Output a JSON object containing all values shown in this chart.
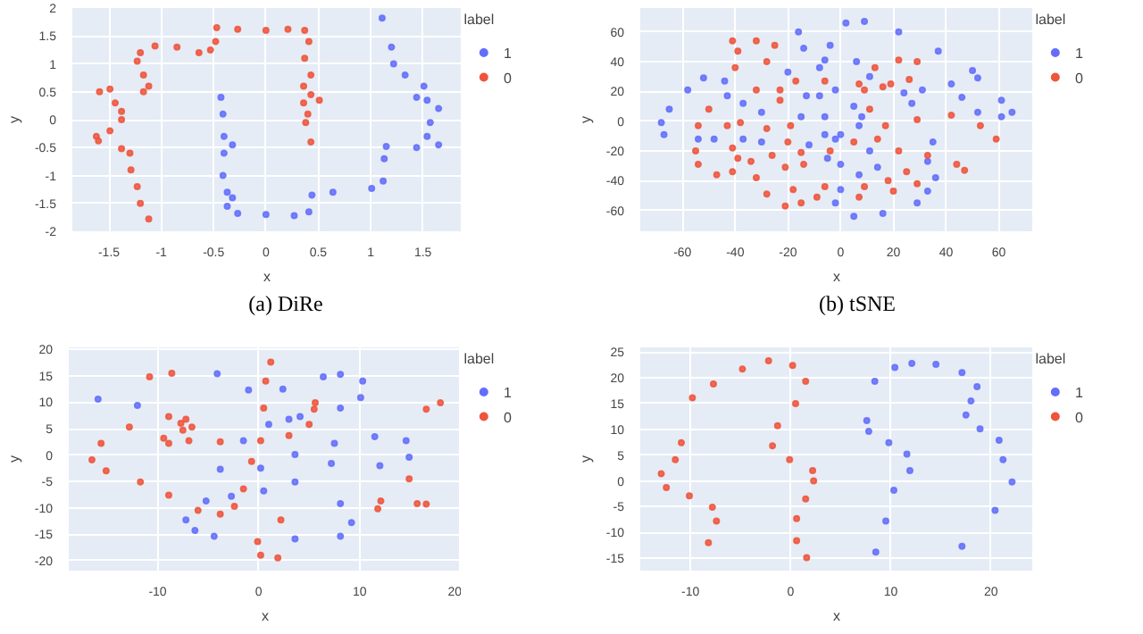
{
  "chart_data": [
    {
      "type": "scatter",
      "xlabel": "x",
      "ylabel": "y",
      "legend_title": "label",
      "legend": "right",
      "grid": true,
      "marker": "circle",
      "annotations": [
        "(a) DiRe"
      ],
      "xlim": [
        -1.85,
        1.87
      ],
      "ylim": [
        -2,
        2
      ],
      "xticks": [
        -1.5,
        -1,
        -0.5,
        0,
        0.5,
        1,
        1.5
      ],
      "yticks": [
        -2,
        -1.5,
        -1,
        -0.5,
        0,
        0.5,
        1,
        1.5,
        2
      ],
      "series": [
        {
          "name": "1",
          "color": "#636efa",
          "x": [
            -0.43,
            -0.41,
            -0.4,
            -0.32,
            -0.4,
            -0.41,
            -0.37,
            -0.32,
            -0.37,
            -0.27,
            0,
            0.27,
            0.41,
            0.44,
            0.64,
            1.01,
            1.12,
            1.13,
            1.15,
            1.44,
            1.65,
            1.54,
            1.57,
            1.65,
            1.54,
            1.44,
            1.51,
            1.33,
            1.22,
            1.2,
            1.11
          ],
          "values": [
            0.4,
            0.1,
            -0.3,
            -0.45,
            -0.6,
            -1.0,
            -1.3,
            -1.4,
            -1.55,
            -1.68,
            -1.7,
            -1.72,
            -1.65,
            -1.35,
            -1.3,
            -1.23,
            -1.1,
            -0.7,
            -0.48,
            -0.5,
            -0.45,
            -0.3,
            -0.05,
            0.2,
            0.35,
            0.4,
            0.6,
            0.8,
            1.0,
            1.3,
            1.82
          ]
        },
        {
          "name": "0",
          "color": "#ef553b",
          "x": [
            -1.12,
            -1.2,
            -1.23,
            -1.29,
            -1.3,
            -1.38,
            -1.6,
            -1.62,
            -1.49,
            -1.38,
            -1.38,
            -1.44,
            -1.59,
            -1.49,
            -1.17,
            -1.12,
            -1.17,
            -1.23,
            -1.2,
            -1.06,
            -0.85,
            -0.64,
            -0.53,
            -0.48,
            -0.47,
            -0.27,
            0.0,
            0.21,
            0.37,
            0.41,
            0.37,
            0.43,
            0.36,
            0.43,
            0.51,
            0.36,
            0.4,
            0.38,
            0.43
          ],
          "values": [
            -1.78,
            -1.5,
            -1.2,
            -0.9,
            -0.6,
            -0.52,
            -0.38,
            -0.3,
            -0.2,
            0.0,
            0.15,
            0.3,
            0.5,
            0.55,
            0.5,
            0.6,
            0.8,
            1.05,
            1.2,
            1.32,
            1.3,
            1.2,
            1.25,
            1.4,
            1.65,
            1.62,
            1.6,
            1.62,
            1.6,
            1.4,
            1.1,
            0.8,
            0.6,
            0.45,
            0.35,
            0.3,
            0.1,
            -0.05,
            -0.4
          ]
        }
      ]
    },
    {
      "type": "scatter",
      "xlabel": "x",
      "ylabel": "y",
      "legend_title": "label",
      "legend": "right",
      "grid": true,
      "marker": "circle",
      "annotations": [
        "(b) tSNE"
      ],
      "xlim": [
        -76,
        73
      ],
      "ylim": [
        -74,
        76
      ],
      "xticks": [
        -60,
        -40,
        -20,
        0,
        20,
        40,
        60
      ],
      "yticks": [
        -60,
        -40,
        -20,
        0,
        20,
        40,
        60
      ],
      "series": [
        {
          "name": "1",
          "color": "#636efa",
          "x": [
            -68,
            -65,
            -58,
            -52,
            -44,
            -43,
            -37,
            -30,
            -67,
            -54,
            -48,
            -37,
            -30,
            -16,
            -4,
            6,
            -14,
            -6,
            -20,
            -8,
            11,
            2,
            9,
            22,
            37,
            50,
            52,
            42,
            31,
            24,
            -13,
            -15,
            -12,
            -5,
            0,
            -8,
            -6,
            0,
            7,
            -2,
            5,
            8,
            27,
            46,
            61,
            65,
            61,
            52,
            -6,
            -2,
            11,
            14,
            7,
            0,
            -2,
            5,
            16,
            29,
            33,
            36,
            33,
            35
          ],
          "values": [
            -1,
            8,
            21,
            29,
            27,
            17,
            12,
            6,
            -9,
            -12,
            -12,
            -12,
            -14,
            60,
            51,
            40,
            49,
            41,
            33,
            36,
            30,
            66,
            67,
            60,
            47,
            34,
            29,
            25,
            21,
            19,
            17,
            3,
            -16,
            -25,
            -29,
            17,
            3,
            -9,
            -3,
            21,
            10,
            3,
            12,
            16,
            14,
            6,
            3,
            6,
            -9,
            -12,
            -20,
            -31,
            -36,
            -46,
            -55,
            -64,
            -62,
            -55,
            -27,
            -38,
            -47,
            -14
          ]
        },
        {
          "name": "0",
          "color": "#ef553b",
          "x": [
            -41,
            -32,
            -25,
            -28,
            -32,
            -39,
            -40,
            -23,
            -17,
            -6,
            7,
            16,
            -23,
            13,
            22,
            29,
            26,
            19,
            9,
            11,
            17,
            29,
            42,
            53,
            59,
            22,
            33,
            44,
            47,
            -54,
            -50,
            -55,
            -54,
            -47,
            -41,
            -34,
            -26,
            -15,
            -43,
            -41,
            -39,
            -38,
            -28,
            -19,
            -20,
            -32,
            -28,
            -21,
            -15,
            -9,
            -14,
            -6,
            -21,
            -18,
            -4,
            5,
            14,
            9,
            18,
            7,
            20,
            25,
            29
          ],
          "values": [
            54,
            54,
            51,
            40,
            21,
            47,
            36,
            21,
            27,
            27,
            25,
            23,
            14,
            36,
            41,
            40,
            28,
            25,
            21,
            8,
            -3,
            1,
            4,
            -3,
            -12,
            -20,
            -23,
            -29,
            -33,
            -3,
            8,
            -20,
            -29,
            -36,
            -34,
            -27,
            -23,
            -21,
            -3,
            -18,
            -25,
            -1,
            -5,
            -3,
            -14,
            -38,
            -49,
            -57,
            -55,
            -51,
            -29,
            -44,
            -31,
            -46,
            -20,
            -14,
            -12,
            -44,
            -40,
            -51,
            -47,
            -34,
            -42
          ]
        }
      ]
    },
    {
      "type": "scatter",
      "xlabel": "x",
      "ylabel": "y",
      "legend_title": "label",
      "legend": "right",
      "grid": true,
      "marker": "circle",
      "xlim": [
        -18.8,
        20.1
      ],
      "ylim": [
        -21.9,
        20.4
      ],
      "xticks": [
        -10,
        0,
        10,
        20
      ],
      "yticks": [
        -20,
        -15,
        -10,
        -5,
        0,
        5,
        10,
        15,
        20
      ],
      "series": [
        {
          "name": "1",
          "color": "#636efa",
          "x": [
            -15.9,
            -12.0,
            -4.1,
            -1.0,
            2.4,
            6.4,
            8.1,
            10.3,
            10.1,
            8.1,
            3.0,
            4.1,
            -1.5,
            1.0,
            -3.8,
            0.2,
            3.6,
            7.5,
            11.5,
            14.6,
            14.9,
            12.0,
            0.5,
            3.6,
            7.2,
            -5.2,
            -2.7,
            -7.2,
            -6.3,
            -4.4,
            3.6,
            8.1,
            9.2,
            8.1
          ],
          "values": [
            10.6,
            9.4,
            15.4,
            12.3,
            12.5,
            14.8,
            15.3,
            14.0,
            10.9,
            8.9,
            6.8,
            7.3,
            2.7,
            5.8,
            -2.7,
            -2.5,
            0.1,
            2.2,
            3.5,
            2.7,
            -0.4,
            -2.0,
            -6.8,
            -5.1,
            -1.6,
            -8.7,
            -7.8,
            -12.3,
            -14.3,
            -15.4,
            -15.9,
            -15.4,
            -12.8,
            -9.2
          ]
        },
        {
          "name": "0",
          "color": "#ef553b",
          "x": [
            -10.8,
            -8.6,
            1.2,
            0.7,
            0.5,
            5.6,
            5.5,
            16.6,
            18.0,
            -16.5,
            -15.6,
            -12.8,
            -8.9,
            -7.2,
            -6.6,
            -7.5,
            -7.7,
            -9.4,
            -8.9,
            -6.9,
            -3.8,
            -15.1,
            -11.7,
            -8.9,
            -6.0,
            -3.8,
            -2.4,
            -1.5,
            0.2,
            3.0,
            5.0,
            -0.7,
            2.2,
            -0.1,
            0.2,
            1.9,
            12.1,
            11.8,
            14.9,
            15.7,
            16.6
          ],
          "values": [
            14.8,
            15.5,
            17.6,
            14.0,
            8.9,
            9.9,
            8.7,
            8.7,
            9.9,
            -0.9,
            2.2,
            5.3,
            7.3,
            6.8,
            5.3,
            4.7,
            6.0,
            3.2,
            2.2,
            2.7,
            2.5,
            -3.0,
            -5.1,
            -7.6,
            -10.5,
            -11.2,
            -9.7,
            -6.4,
            2.7,
            3.7,
            5.8,
            -1.2,
            -12.3,
            -16.4,
            -19.0,
            -19.5,
            -8.7,
            -10.2,
            -4.5,
            -9.2,
            -9.3
          ]
        }
      ]
    },
    {
      "type": "scatter",
      "xlabel": "x",
      "ylabel": "y",
      "legend_title": "label",
      "legend": "right",
      "grid": true,
      "marker": "circle",
      "xlim": [
        -15,
        24.2
      ],
      "ylim": [
        -17.4,
        25.9
      ],
      "xticks": [
        -10,
        0,
        10,
        20
      ],
      "yticks": [
        -15,
        -10,
        -5,
        0,
        5,
        10,
        15,
        20,
        25
      ],
      "series": [
        {
          "name": "1",
          "color": "#636efa",
          "x": [
            8.5,
            9.5,
            10.3,
            11.9,
            11.6,
            9.8,
            7.8,
            7.6,
            8.4,
            10.4,
            12.1,
            14.5,
            17.1,
            18.6,
            18.0,
            17.5,
            18.9,
            20.8,
            21.2,
            22.1,
            20.4,
            17.1
          ],
          "values": [
            -13.8,
            -7.8,
            -1.8,
            2.0,
            5.2,
            7.4,
            9.6,
            11.7,
            19.3,
            22.0,
            22.8,
            22.6,
            21.0,
            18.3,
            15.5,
            12.8,
            10.1,
            7.9,
            4.1,
            -0.2,
            -5.7,
            -12.7
          ]
        },
        {
          "name": "0",
          "color": "#ef553b",
          "x": [
            -8.2,
            -7.4,
            -7.8,
            -10.1,
            -12.4,
            -12.9,
            -11.5,
            -10.9,
            -9.8,
            -7.7,
            -4.8,
            -2.2,
            0.2,
            1.5,
            0.5,
            -1.3,
            -1.8,
            -0.1,
            2.2,
            2.3,
            1.5,
            0.6,
            0.6,
            1.6
          ],
          "values": [
            -12.0,
            -7.8,
            -5.1,
            -2.9,
            -1.3,
            1.4,
            4.1,
            7.4,
            16.1,
            18.8,
            21.7,
            23.3,
            22.4,
            19.3,
            15.0,
            10.7,
            6.8,
            4.1,
            2.0,
            0,
            -3.5,
            -7.3,
            -11.6,
            -14.9
          ]
        }
      ]
    }
  ]
}
